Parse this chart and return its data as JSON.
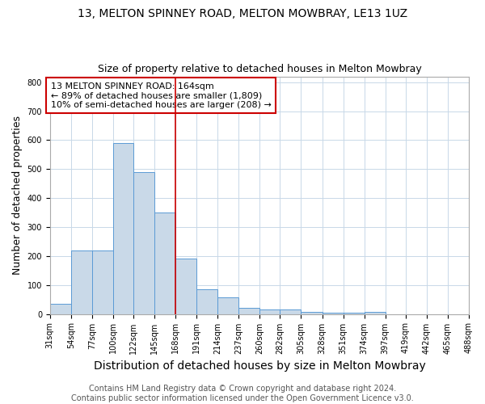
{
  "title": "13, MELTON SPINNEY ROAD, MELTON MOWBRAY, LE13 1UZ",
  "subtitle": "Size of property relative to detached houses in Melton Mowbray",
  "xlabel": "Distribution of detached houses by size in Melton Mowbray",
  "ylabel": "Number of detached properties",
  "bins": [
    31,
    54,
    77,
    100,
    122,
    145,
    168,
    191,
    214,
    237,
    260,
    282,
    305,
    328,
    351,
    374,
    397,
    419,
    442,
    465,
    488
  ],
  "counts": [
    35,
    218,
    218,
    590,
    490,
    350,
    190,
    85,
    57,
    20,
    15,
    15,
    8,
    3,
    3,
    8,
    0,
    0,
    0,
    0
  ],
  "bar_color": "#c9d9e8",
  "bar_edge_color": "#5b9bd5",
  "property_line_x": 168,
  "property_line_color": "#cc0000",
  "annotation_text": "13 MELTON SPINNEY ROAD: 164sqm\n← 89% of detached houses are smaller (1,809)\n10% of semi-detached houses are larger (208) →",
  "annotation_box_color": "#ffffff",
  "annotation_box_edge_color": "#cc0000",
  "footer_line1": "Contains HM Land Registry data © Crown copyright and database right 2024.",
  "footer_line2": "Contains public sector information licensed under the Open Government Licence v3.0.",
  "ylim": [
    0,
    820
  ],
  "yticks": [
    0,
    100,
    200,
    300,
    400,
    500,
    600,
    700,
    800
  ],
  "background_color": "#ffffff",
  "grid_color": "#c8d8e8",
  "title_fontsize": 10,
  "subtitle_fontsize": 9,
  "xlabel_fontsize": 10,
  "ylabel_fontsize": 9,
  "tick_fontsize": 7,
  "footer_fontsize": 7,
  "annotation_fontsize": 8
}
